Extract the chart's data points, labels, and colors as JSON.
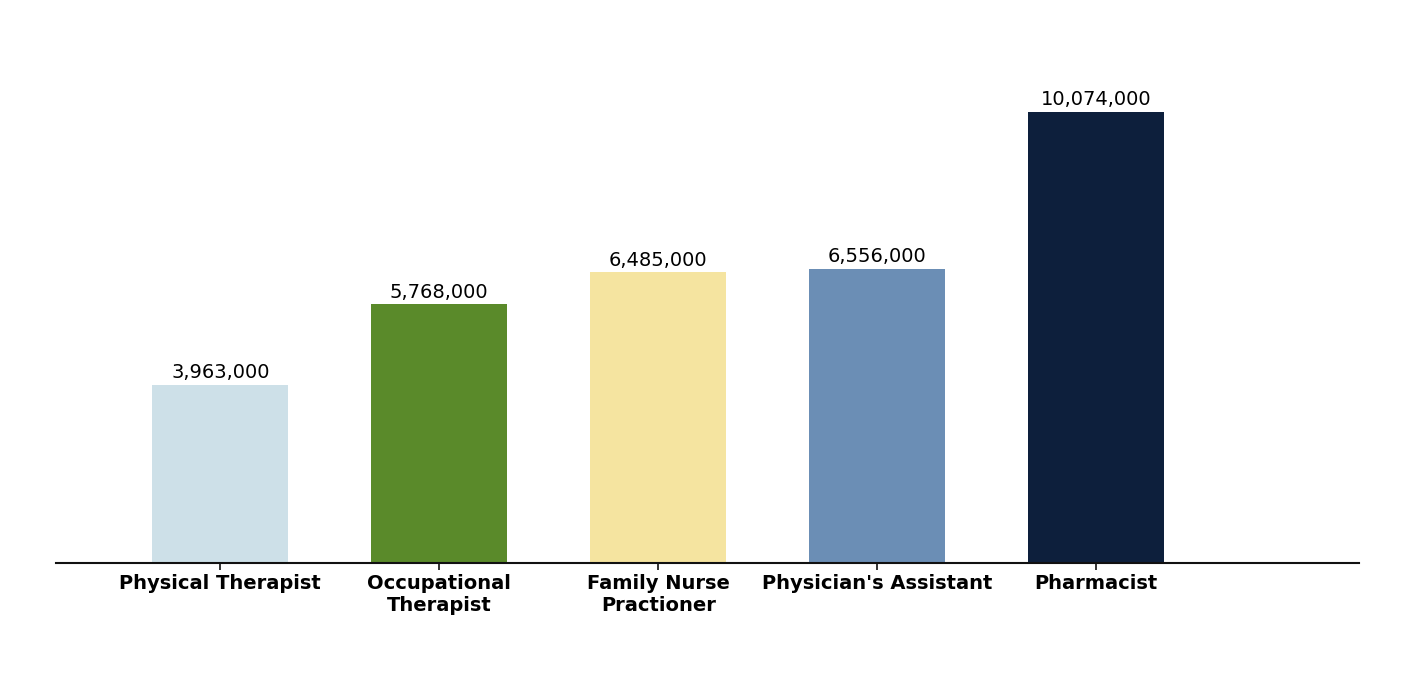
{
  "categories": [
    "Physical Therapist",
    "Occupational\nTherapist",
    "Family Nurse\nPractioner",
    "Physician's Assistant",
    "Pharmacist"
  ],
  "values": [
    3963000,
    5768000,
    6485000,
    6556000,
    10074000
  ],
  "bar_colors": [
    "#cde0e8",
    "#5a8a2a",
    "#f5e4a0",
    "#6b8eb5",
    "#0d1f3c"
  ],
  "labels": [
    "3,963,000",
    "5,768,000",
    "6,485,000",
    "6,556,000",
    "10,074,000"
  ],
  "ylim": [
    0,
    11800000
  ],
  "background_color": "#ffffff",
  "label_fontsize": 14,
  "tick_fontsize": 14,
  "bar_width": 0.62,
  "xlim_left": -0.75,
  "xlim_right": 5.2
}
